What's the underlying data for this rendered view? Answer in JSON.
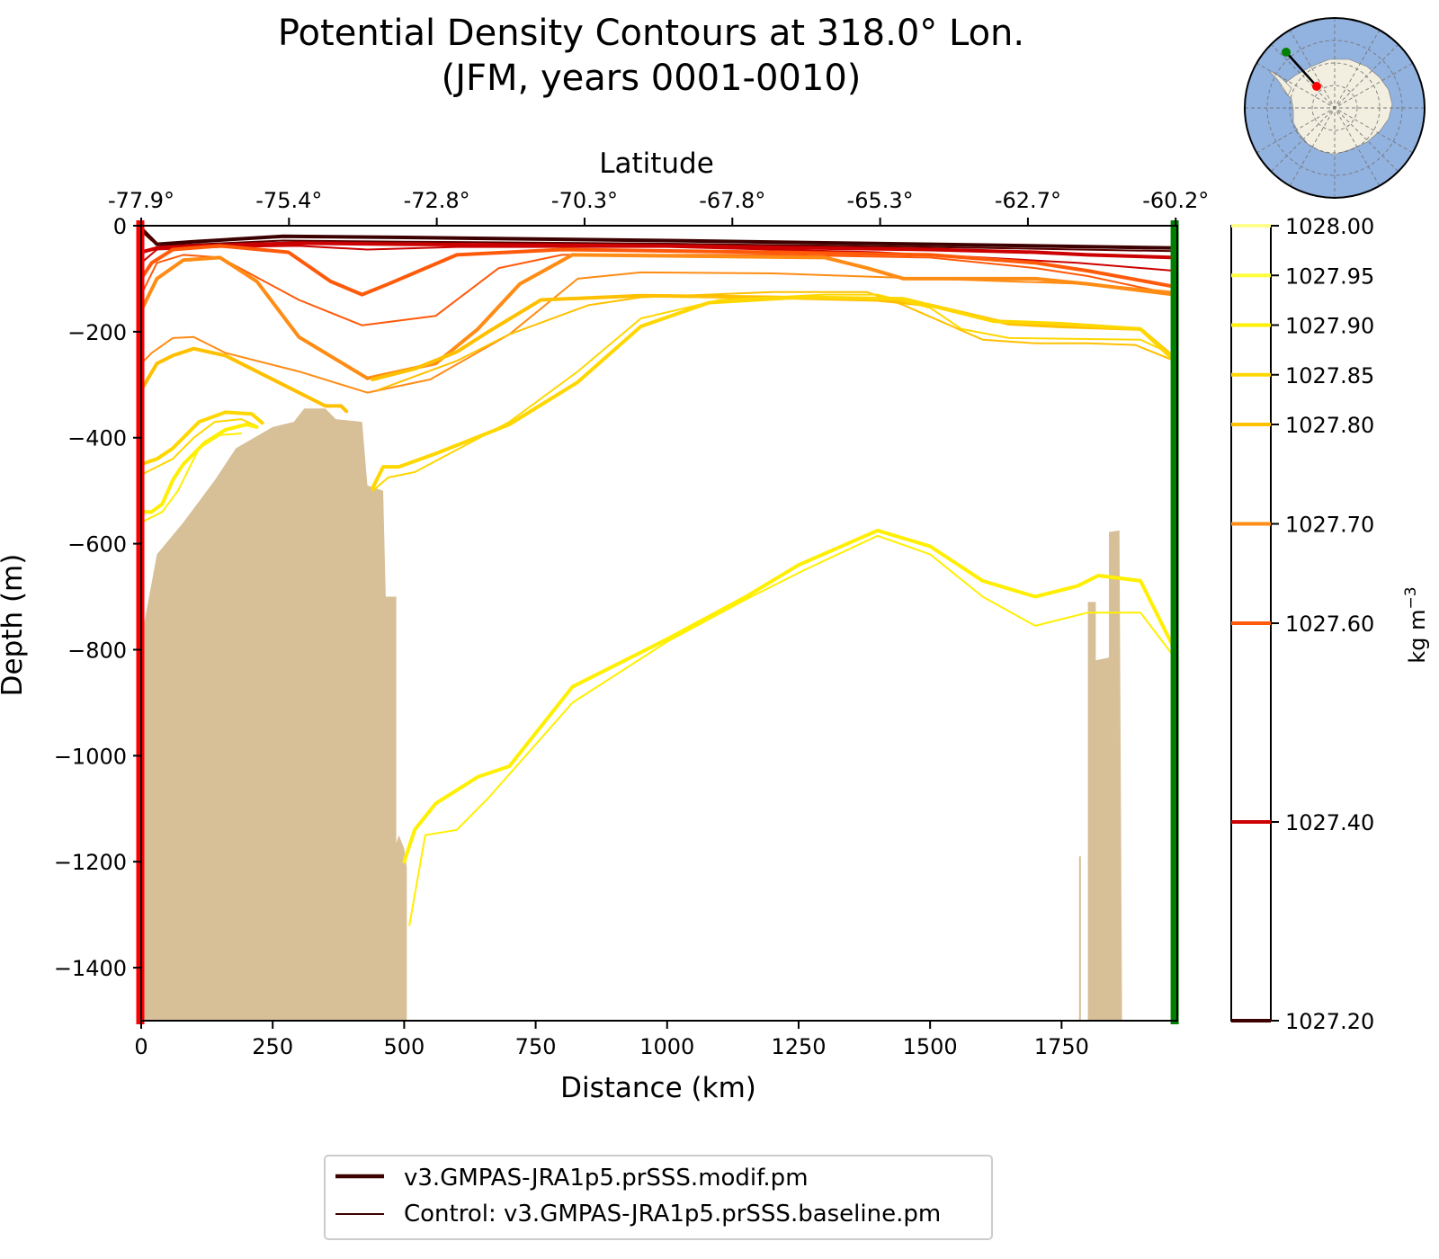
{
  "chart_data": {
    "type": "contour-section",
    "title_line1": "Potential Density Contours at 318.0° Lon.",
    "title_line2": "(JFM, years 0001-0010)",
    "xlabel": "Distance (km)",
    "ylabel": "Depth (m)",
    "top_axis_label": "Latitude",
    "xlim": [
      0,
      1970
    ],
    "ylim": [
      -1500,
      0
    ],
    "x_ticks": [
      0,
      250,
      500,
      750,
      1000,
      1250,
      1500,
      1750
    ],
    "x_tick_labels": [
      "0",
      "250",
      "500",
      "750",
      "1000",
      "1250",
      "1500",
      "1750"
    ],
    "y_ticks": [
      0,
      -200,
      -400,
      -600,
      -800,
      -1000,
      -1200,
      -1400
    ],
    "y_tick_labels": [
      "0",
      "−200",
      "−400",
      "−600",
      "−800",
      "−1000",
      "−1200",
      "−1400"
    ],
    "lat_ticks_km": [
      0,
      281,
      562,
      843,
      1124,
      1405,
      1686,
      1967
    ],
    "lat_tick_labels": [
      "-77.9°",
      "-75.4°",
      "-72.8°",
      "-70.3°",
      "-67.8°",
      "-65.3°",
      "-62.7°",
      "-60.2°"
    ],
    "colorbar": {
      "label": "kg m",
      "label_sup": "−3",
      "range": [
        1027.2,
        1028.0
      ],
      "levels": [
        {
          "value": 1028.0,
          "label": "1028.00",
          "color": "#fffde6"
        },
        {
          "value": 1027.95,
          "label": "1027.95",
          "color": "#ffff3c"
        },
        {
          "value": 1027.9,
          "label": "1027.90",
          "color": "#ffef00"
        },
        {
          "value": 1027.85,
          "label": "1027.85",
          "color": "#ffd700"
        },
        {
          "value": 1027.8,
          "label": "1027.80",
          "color": "#ffc000"
        },
        {
          "value": 1027.7,
          "label": "1027.70",
          "color": "#ff8c14"
        },
        {
          "value": 1027.6,
          "label": "1027.60",
          "color": "#ff5a0a"
        },
        {
          "value": 1027.4,
          "label": "1027.40",
          "color": "#cc0000"
        },
        {
          "value": 1027.2,
          "label": "1027.20",
          "color": "#3d0000"
        }
      ]
    },
    "contours": [
      {
        "level": 1027.2,
        "series": "modif",
        "color": "#3d0000",
        "points": [
          [
            0,
            -5
          ],
          [
            15,
            -20
          ],
          [
            30,
            -35
          ],
          [
            100,
            -30
          ],
          [
            270,
            -20
          ],
          [
            500,
            -22
          ],
          [
            1000,
            -28
          ],
          [
            1500,
            -35
          ],
          [
            1965,
            -42
          ]
        ]
      },
      {
        "level": 1027.2,
        "series": "baseline",
        "color": "#5a0000",
        "points": [
          [
            0,
            -10
          ],
          [
            20,
            -28
          ],
          [
            40,
            -38
          ],
          [
            270,
            -28
          ],
          [
            500,
            -30
          ],
          [
            1000,
            -34
          ],
          [
            1500,
            -40
          ],
          [
            1965,
            -48
          ]
        ]
      },
      {
        "level": 1027.4,
        "series": "modif",
        "color": "#cc0000",
        "points": [
          [
            0,
            -50
          ],
          [
            30,
            -42
          ],
          [
            100,
            -38
          ],
          [
            300,
            -33
          ],
          [
            500,
            -35
          ],
          [
            1000,
            -38
          ],
          [
            1500,
            -45
          ],
          [
            1700,
            -50
          ],
          [
            1800,
            -55
          ],
          [
            1965,
            -60
          ]
        ]
      },
      {
        "level": 1027.4,
        "series": "baseline",
        "color": "#cc0000",
        "points": [
          [
            0,
            -70
          ],
          [
            30,
            -45
          ],
          [
            150,
            -40
          ],
          [
            300,
            -38
          ],
          [
            430,
            -45
          ],
          [
            600,
            -40
          ],
          [
            1000,
            -40
          ],
          [
            1400,
            -50
          ],
          [
            1600,
            -60
          ],
          [
            1780,
            -70
          ],
          [
            1965,
            -85
          ]
        ]
      },
      {
        "level": 1027.6,
        "series": "modif",
        "color": "#ff5a0a",
        "points": [
          [
            0,
            -100
          ],
          [
            20,
            -70
          ],
          [
            60,
            -45
          ],
          [
            150,
            -38
          ],
          [
            280,
            -50
          ],
          [
            360,
            -105
          ],
          [
            420,
            -130
          ],
          [
            470,
            -110
          ],
          [
            600,
            -55
          ],
          [
            800,
            -45
          ],
          [
            1200,
            -50
          ],
          [
            1500,
            -55
          ],
          [
            1700,
            -70
          ],
          [
            1800,
            -85
          ],
          [
            1965,
            -115
          ]
        ]
      },
      {
        "level": 1027.6,
        "series": "baseline",
        "color": "#ff5a0a",
        "points": [
          [
            0,
            -130
          ],
          [
            30,
            -70
          ],
          [
            80,
            -55
          ],
          [
            150,
            -60
          ],
          [
            300,
            -140
          ],
          [
            420,
            -188
          ],
          [
            560,
            -170
          ],
          [
            680,
            -80
          ],
          [
            800,
            -55
          ],
          [
            1200,
            -55
          ],
          [
            1500,
            -60
          ],
          [
            1700,
            -80
          ],
          [
            1800,
            -95
          ],
          [
            1965,
            -130
          ]
        ]
      },
      {
        "level": 1027.7,
        "series": "modif",
        "color": "#ff8c14",
        "points": [
          [
            0,
            -160
          ],
          [
            30,
            -100
          ],
          [
            80,
            -65
          ],
          [
            150,
            -60
          ],
          [
            220,
            -105
          ],
          [
            300,
            -210
          ],
          [
            430,
            -288
          ],
          [
            560,
            -260
          ],
          [
            640,
            -195
          ],
          [
            720,
            -110
          ],
          [
            820,
            -55
          ],
          [
            1300,
            -60
          ],
          [
            1380,
            -80
          ],
          [
            1450,
            -100
          ],
          [
            1700,
            -100
          ],
          [
            1800,
            -110
          ],
          [
            1965,
            -130
          ]
        ]
      },
      {
        "level": 1027.7,
        "series": "baseline",
        "color": "#ff8c14",
        "points": [
          [
            0,
            -260
          ],
          [
            20,
            -240
          ],
          [
            60,
            -212
          ],
          [
            100,
            -210
          ],
          [
            160,
            -240
          ],
          [
            300,
            -275
          ],
          [
            430,
            -315
          ],
          [
            550,
            -290
          ],
          [
            700,
            -205
          ],
          [
            830,
            -100
          ],
          [
            950,
            -88
          ],
          [
            1200,
            -90
          ],
          [
            1500,
            -100
          ],
          [
            1800,
            -110
          ],
          [
            1965,
            -125
          ]
        ]
      },
      {
        "level": 1027.8,
        "series": "modif",
        "color": "#ffc000",
        "points": [
          [
            0,
            -310
          ],
          [
            30,
            -260
          ],
          [
            60,
            -245
          ],
          [
            100,
            -232
          ],
          [
            160,
            -245
          ],
          [
            270,
            -300
          ],
          [
            350,
            -340
          ],
          [
            380,
            -340
          ],
          [
            390,
            -350
          ]
        ]
      },
      {
        "level": 1027.8,
        "series": "modif",
        "color": "#ffc000",
        "points": [
          [
            440,
            -290
          ],
          [
            520,
            -270
          ],
          [
            600,
            -238
          ],
          [
            660,
            -200
          ],
          [
            760,
            -140
          ],
          [
            950,
            -132
          ],
          [
            1200,
            -135
          ],
          [
            1400,
            -140
          ],
          [
            1500,
            -150
          ],
          [
            1650,
            -185
          ],
          [
            1750,
            -190
          ],
          [
            1900,
            -195
          ],
          [
            1965,
            -250
          ]
        ]
      },
      {
        "level": 1027.8,
        "series": "baseline",
        "color": "#ffc000",
        "points": [
          [
            450,
            -310
          ],
          [
            600,
            -255
          ],
          [
            700,
            -205
          ],
          [
            850,
            -150
          ],
          [
            950,
            -135
          ],
          [
            1200,
            -125
          ],
          [
            1380,
            -125
          ],
          [
            1450,
            -150
          ],
          [
            1600,
            -215
          ],
          [
            1700,
            -222
          ],
          [
            1800,
            -222
          ],
          [
            1890,
            -225
          ],
          [
            1965,
            -255
          ]
        ]
      },
      {
        "level": 1027.85,
        "series": "modif",
        "color": "#ffd700",
        "points": [
          [
            0,
            -450
          ],
          [
            30,
            -440
          ],
          [
            60,
            -420
          ],
          [
            110,
            -370
          ],
          [
            160,
            -352
          ],
          [
            210,
            -355
          ],
          [
            230,
            -372
          ]
        ]
      },
      {
        "level": 1027.85,
        "series": "modif",
        "color": "#ffd700",
        "points": [
          [
            440,
            -495
          ],
          [
            460,
            -455
          ],
          [
            490,
            -455
          ],
          [
            560,
            -430
          ],
          [
            700,
            -375
          ],
          [
            830,
            -295
          ],
          [
            950,
            -190
          ],
          [
            1080,
            -145
          ],
          [
            1250,
            -135
          ],
          [
            1450,
            -138
          ],
          [
            1620,
            -180
          ],
          [
            1750,
            -185
          ],
          [
            1900,
            -195
          ],
          [
            1965,
            -255
          ]
        ]
      },
      {
        "level": 1027.85,
        "series": "baseline",
        "color": "#ffd700",
        "points": [
          [
            0,
            -470
          ],
          [
            30,
            -455
          ],
          [
            60,
            -440
          ],
          [
            100,
            -400
          ],
          [
            140,
            -370
          ],
          [
            190,
            -365
          ],
          [
            220,
            -378
          ]
        ]
      },
      {
        "level": 1027.85,
        "series": "baseline",
        "color": "#ffd700",
        "points": [
          [
            440,
            -500
          ],
          [
            470,
            -475
          ],
          [
            520,
            -465
          ],
          [
            700,
            -370
          ],
          [
            830,
            -275
          ],
          [
            950,
            -175
          ],
          [
            1100,
            -140
          ],
          [
            1300,
            -130
          ],
          [
            1400,
            -130
          ],
          [
            1500,
            -155
          ],
          [
            1560,
            -195
          ],
          [
            1650,
            -212
          ],
          [
            1900,
            -215
          ],
          [
            1965,
            -245
          ]
        ]
      },
      {
        "level": 1027.9,
        "series": "modif",
        "color": "#ffef00",
        "points": [
          [
            0,
            -540
          ],
          [
            20,
            -540
          ],
          [
            40,
            -525
          ],
          [
            60,
            -480
          ],
          [
            80,
            -450
          ],
          [
            120,
            -410
          ],
          [
            160,
            -385
          ],
          [
            200,
            -375
          ],
          [
            220,
            -380
          ]
        ]
      },
      {
        "level": 1027.9,
        "series": "modif",
        "color": "#ffef00",
        "points": [
          [
            500,
            -1200
          ],
          [
            520,
            -1140
          ],
          [
            560,
            -1090
          ],
          [
            640,
            -1040
          ],
          [
            700,
            -1020
          ],
          [
            820,
            -870
          ],
          [
            1000,
            -780
          ],
          [
            1150,
            -700
          ],
          [
            1250,
            -640
          ],
          [
            1400,
            -575
          ],
          [
            1500,
            -605
          ],
          [
            1600,
            -670
          ],
          [
            1700,
            -700
          ],
          [
            1780,
            -680
          ],
          [
            1820,
            -660
          ],
          [
            1900,
            -670
          ],
          [
            1965,
            -800
          ]
        ]
      },
      {
        "level": 1027.9,
        "series": "baseline",
        "color": "#ffef00",
        "points": [
          [
            0,
            -560
          ],
          [
            40,
            -540
          ],
          [
            70,
            -500
          ],
          [
            110,
            -420
          ],
          [
            150,
            -395
          ],
          [
            190,
            -392
          ]
        ]
      },
      {
        "level": 1027.9,
        "series": "baseline",
        "color": "#ffef00",
        "points": [
          [
            510,
            -1320
          ],
          [
            540,
            -1150
          ],
          [
            600,
            -1140
          ],
          [
            660,
            -1080
          ],
          [
            820,
            -900
          ],
          [
            1000,
            -785
          ],
          [
            1150,
            -705
          ],
          [
            1260,
            -650
          ],
          [
            1400,
            -585
          ],
          [
            1500,
            -620
          ],
          [
            1600,
            -700
          ],
          [
            1700,
            -755
          ],
          [
            1800,
            -730
          ],
          [
            1900,
            -730
          ],
          [
            1965,
            -815
          ]
        ]
      }
    ],
    "bathymetry": [
      [
        0,
        -1500
      ],
      [
        0,
        -780
      ],
      [
        30,
        -620
      ],
      [
        80,
        -560
      ],
      [
        140,
        -480
      ],
      [
        180,
        -420
      ],
      [
        250,
        -380
      ],
      [
        290,
        -370
      ],
      [
        310,
        -345
      ],
      [
        350,
        -345
      ],
      [
        370,
        -365
      ],
      [
        420,
        -370
      ],
      [
        430,
        -490
      ],
      [
        460,
        -500
      ],
      [
        465,
        -700
      ],
      [
        485,
        -700
      ],
      [
        485,
        -1165
      ],
      [
        490,
        -1150
      ],
      [
        500,
        -1175
      ],
      [
        505,
        -1210
      ],
      [
        505,
        -1500
      ]
    ],
    "bathymetry_right": [
      [
        1800,
        -1500
      ],
      [
        1800,
        -710
      ],
      [
        1815,
        -710
      ],
      [
        1815,
        -820
      ],
      [
        1840,
        -815
      ],
      [
        1840,
        -578
      ],
      [
        1860,
        -575
      ],
      [
        1865,
        -1500
      ]
    ],
    "section_start_marker_color": "#ff0000",
    "section_end_marker_color": "#008000",
    "bathymetry_color": "#d7bf97",
    "inset_map": {
      "ocean_color": "#92b2e0",
      "land_color": "#f2efe0",
      "start_point_color": "#ff0000",
      "end_point_color": "#008000"
    },
    "legend": [
      {
        "label": "v3.GMPAS-JRA1p5.prSSS.modif.pm",
        "color": "#3d0000",
        "style": "thick"
      },
      {
        "label": "Control: v3.GMPAS-JRA1p5.prSSS.baseline.pm",
        "color": "#3d0000",
        "style": "thin"
      }
    ]
  }
}
